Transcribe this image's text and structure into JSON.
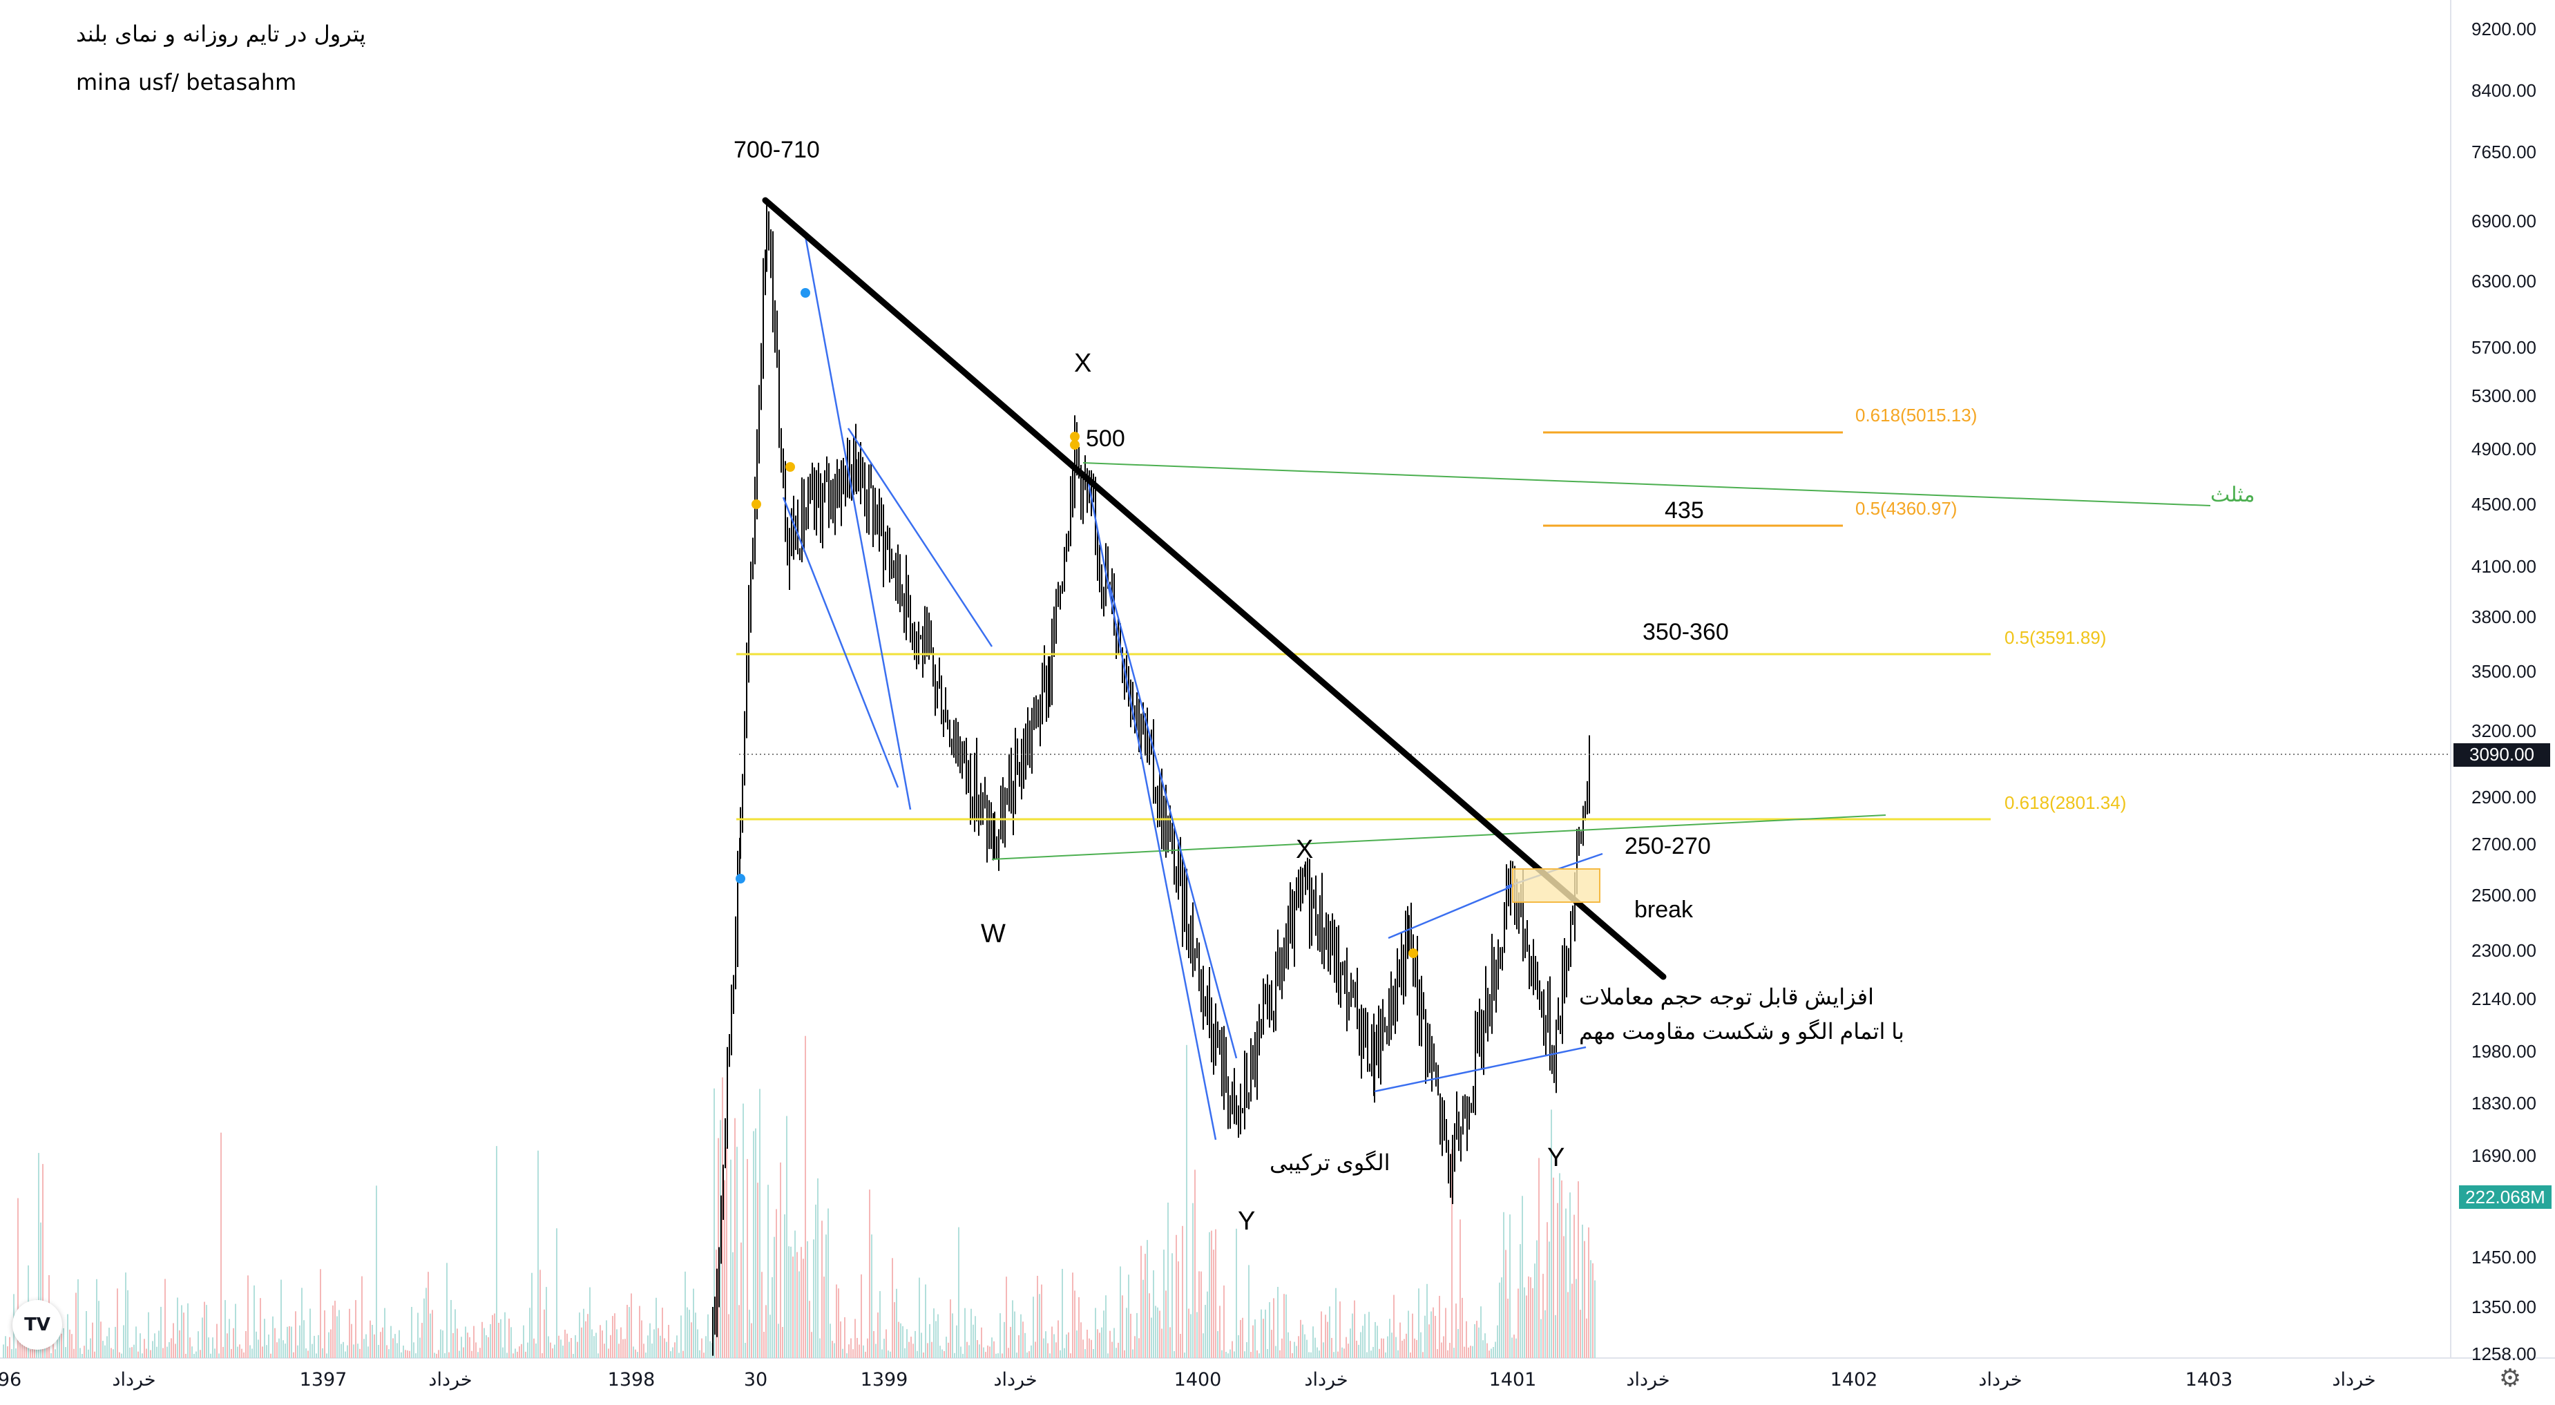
{
  "header": {
    "title": "پترول در تایم روزانه و نمای بلند",
    "author": "mina usf/ betasahm"
  },
  "price_axis": {
    "ticks": [
      "9200.00",
      "8400.00",
      "7650.00",
      "6900.00",
      "6300.00",
      "5700.00",
      "5300.00",
      "4900.00",
      "4500.00",
      "4100.00",
      "3800.00",
      "3500.00",
      "3200.00",
      "2900.00",
      "2700.00",
      "2500.00",
      "2300.00",
      "2140.00",
      "1980.00",
      "1830.00",
      "1690.00",
      "1450.00",
      "1350.00",
      "1258.00"
    ],
    "last_price": "3090.00",
    "last_price_color": "#131722",
    "volume_badge": "222.068M",
    "volume_badge_color": "#26a69a"
  },
  "time_axis": {
    "labels": [
      "96",
      "خرداد",
      "1397",
      "خرداد",
      "1398",
      "30",
      "1399",
      "خرداد",
      "1400",
      "خرداد",
      "1401",
      "خرداد",
      "1402",
      "خرداد",
      "1403",
      "خرداد"
    ]
  },
  "annotations": {
    "peak_range": "700-710",
    "x_top": "X",
    "level_500": "500",
    "label_435": "435",
    "label_350_360": "350-360",
    "label_250_270": "250-270",
    "break": "break",
    "w": "W",
    "x_mid": "X",
    "y_left": "Y",
    "y_right": "Y",
    "pattern": "الگوی ترکیبی",
    "triangle": "مثلث",
    "volume_note_1": "افزایش قابل توجه حجم معاملات",
    "volume_note_2": "با اتمام الگو و شکست مقاومت مهم"
  },
  "fib_labels": {
    "f618_top": "0.618(5015.13)",
    "f5_top": "0.5(4360.97)",
    "f5_mid": "0.5(3591.89)",
    "f618_low": "0.618(2801.34)"
  },
  "colors": {
    "fib_orange": "#f5a623",
    "fib_yellow": "#f2e23a",
    "fib_yellow_text": "#f0c419",
    "trend_blue": "#3a6ff0",
    "triangle_green": "#4caf50",
    "volume_up": "#b2dfdb",
    "volume_down": "#f5b7b7"
  },
  "chart_data": {
    "type": "candlestick",
    "symbol_note": "پترول",
    "y_scale": "log",
    "ylim": [
      1258,
      9200
    ],
    "x_axis_range": [
      "1396",
      "1403"
    ],
    "waypoints": [
      {
        "x": "1398 late",
        "y": 1258
      },
      {
        "x": "1398 end",
        "y": 2800
      },
      {
        "x": "1399 start",
        "y": 7000
      },
      {
        "x": "1399 early",
        "y": 4300
      },
      {
        "x": "1399 mid",
        "y": 4800
      },
      {
        "x": "1399 mid",
        "y": 2700
      },
      {
        "x": "1399 late",
        "y": 3500
      },
      {
        "x": "1399 late",
        "y": 4900
      },
      {
        "x": "1400 start",
        "y": 1780
      },
      {
        "x": "1400 mid",
        "y": 2550
      },
      {
        "x": "1400 late",
        "y": 1950
      },
      {
        "x": "1400 late",
        "y": 2350
      },
      {
        "x": "1400 end",
        "y": 1650
      },
      {
        "x": "1401 start",
        "y": 2550
      },
      {
        "x": "1401",
        "y": 1980
      },
      {
        "x": "1401",
        "y": 3090
      }
    ],
    "last_price": 3090.0,
    "last_volume": "222.068M",
    "fibonacci_levels": [
      {
        "ratio": 0.618,
        "price": 5015.13
      },
      {
        "ratio": 0.5,
        "price": 4360.97
      },
      {
        "ratio": 0.5,
        "price": 3591.89
      },
      {
        "ratio": 0.618,
        "price": 2801.34
      }
    ],
    "target_zones": [
      "700-710",
      "500",
      "435",
      "350-360",
      "250-270"
    ],
    "wave_labels": [
      "W",
      "X",
      "Y",
      "X",
      "Y"
    ],
    "trendline": {
      "from_price": 7000,
      "to_price": 2250,
      "label": "break"
    }
  }
}
